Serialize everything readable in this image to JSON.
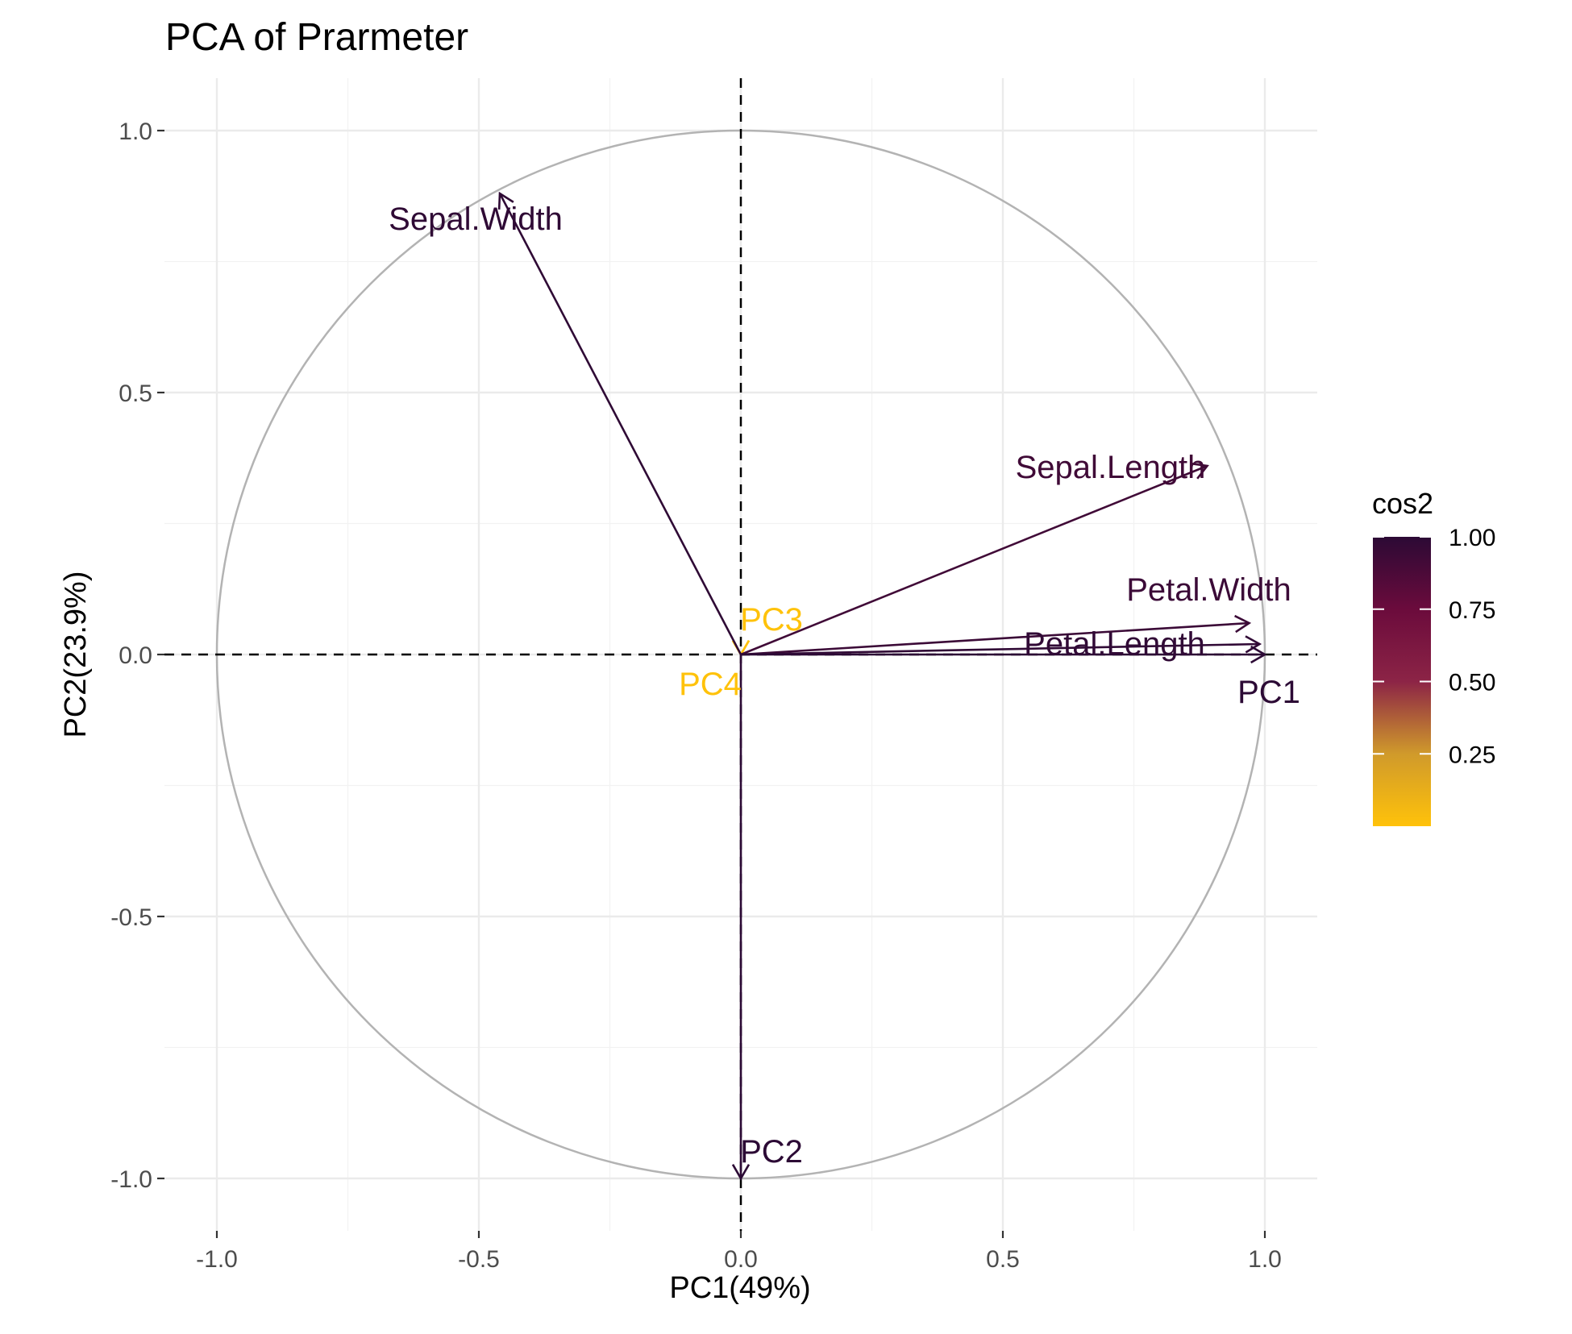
{
  "chart_data": {
    "type": "scatter",
    "subtype": "pca-variable-correlation-circle",
    "title": "PCA of Prarmeter",
    "xlabel": "PC1(49%)",
    "ylabel": "PC2(23.9%)",
    "xlim": [
      -1.1,
      1.1
    ],
    "ylim": [
      -1.1,
      1.1
    ],
    "x_ticks": [
      -1.0,
      -0.5,
      0.0,
      0.5,
      1.0
    ],
    "x_tick_labels": [
      "-1.0",
      "-0.5",
      "0.0",
      "0.5",
      "1.0"
    ],
    "y_ticks": [
      -1.0,
      -0.5,
      0.0,
      0.5,
      1.0
    ],
    "y_tick_labels": [
      "-1.0",
      "-0.5",
      "0.0",
      "0.5",
      "1.0"
    ],
    "grid": true,
    "unit_circle": true,
    "zero_lines": "dashed",
    "variables": [
      {
        "label": "Sepal.Width",
        "x": -0.46,
        "y": 0.88,
        "cos2": 0.99
      },
      {
        "label": "Sepal.Length",
        "x": 0.89,
        "y": 0.36,
        "cos2": 0.92
      },
      {
        "label": "Petal.Width",
        "x": 0.97,
        "y": 0.06,
        "cos2": 0.94
      },
      {
        "label": "Petal.Length",
        "x": 0.99,
        "y": 0.02,
        "cos2": 0.98
      },
      {
        "label": "PC1",
        "x": 1.0,
        "y": 0.0,
        "cos2": 1.0
      },
      {
        "label": "PC2",
        "x": 0.0,
        "y": -1.0,
        "cos2": 1.0
      },
      {
        "label": "PC3",
        "x": 0.0,
        "y": 0.0,
        "cos2": 0.0
      },
      {
        "label": "PC4",
        "x": 0.0,
        "y": 0.0,
        "cos2": 0.0
      }
    ],
    "legend": {
      "title": "cos2",
      "position": "right",
      "ticks": [
        1.0,
        0.75,
        0.5,
        0.25
      ],
      "tick_labels": [
        "1.00",
        "0.75",
        "0.50",
        "0.25"
      ],
      "range": [
        0.0,
        1.0
      ],
      "colors": [
        "#FFC20A",
        "#D09A2B",
        "#8C2446",
        "#6B0B3C",
        "#2C0A35"
      ]
    }
  }
}
